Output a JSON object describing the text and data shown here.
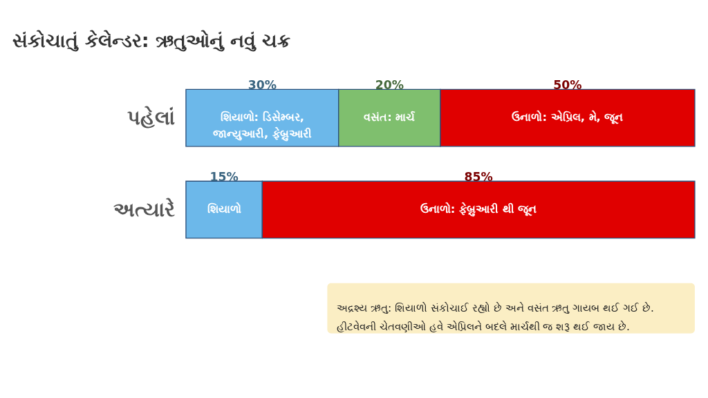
{
  "chart_data": {
    "type": "bar",
    "orientation": "horizontal",
    "stacked": true,
    "title": "સંકોચાતું કેલેન્ડર: ઋતુઓનું નવું ચક્ર",
    "categories": [
      "પહેલાં",
      "અત્યારે"
    ],
    "xlim": [
      0,
      100
    ],
    "tick_labels": "y",
    "grid": false,
    "series": [
      {
        "color": "#6cb8ea",
        "values": [
          30,
          15
        ],
        "value_labels": [
          "30%",
          "15%"
        ]
      },
      {
        "color": "#7fbf6e",
        "values": [
          20,
          null
        ],
        "value_labels": [
          "20%",
          null
        ]
      },
      {
        "color": "#e00000",
        "values": [
          50,
          85
        ],
        "value_labels": [
          "50%",
          "85%"
        ]
      }
    ],
    "annotations": [
      "શિયાળો: ડિસેમ્બર,\nજાન્યુઆરી, ફેબ્રુઆરી",
      "વસંત: માર્ચ",
      "ઉનાળો: એપ્રિલ, મે, જૂન",
      "શિયાળો",
      "ઉનાળો: ફેબ્રુઆરી થી જૂન",
      "અદ્રશ્ય ઋતુ: શિયાળો સંકોચાઈ રહ્યો છે અને વસંત ઋતુ ગાયબ થઈ ગઈ છે.\nહીટવેવની ચેતવણીઓ હવે એપ્રિલને બદલે માર્ચથી જ શરૂ થઈ જાય છે."
    ]
  }
}
